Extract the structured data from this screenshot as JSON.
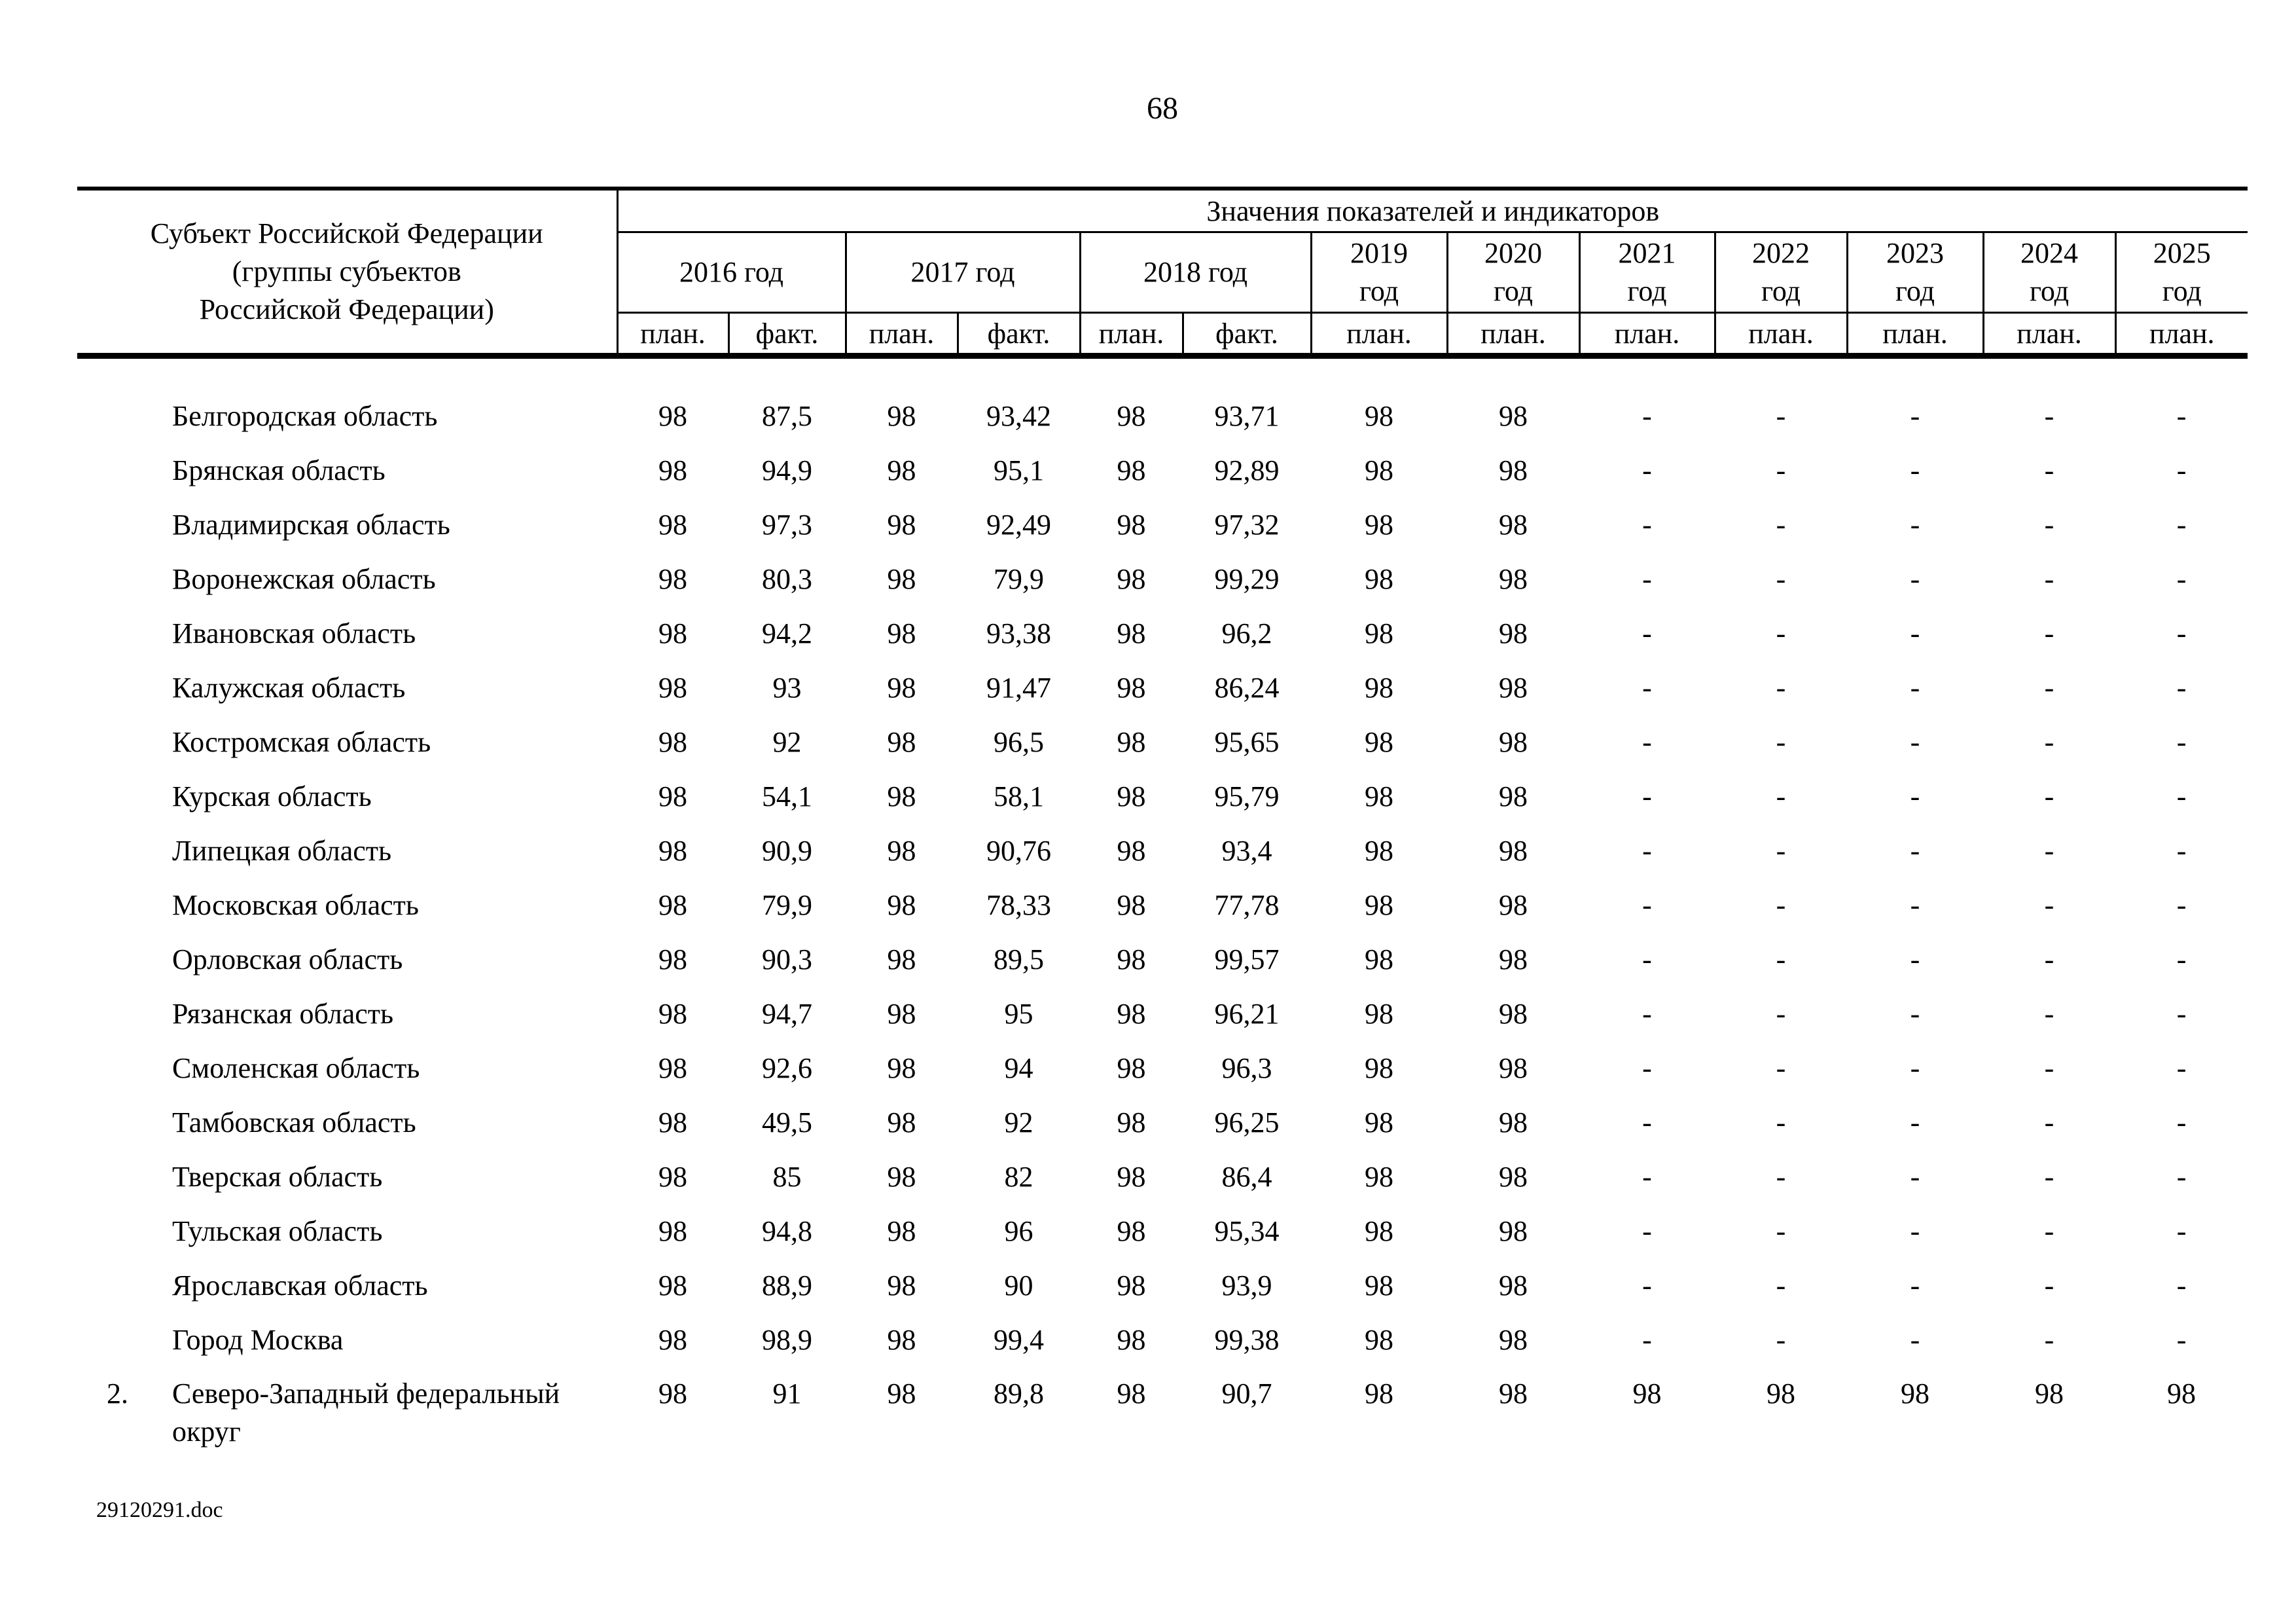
{
  "page": {
    "number": "68",
    "footer_filename": "29120291.doc"
  },
  "table": {
    "subject_header": "Субъект Российской Федерации\n(группы субъектов\nРоссийской Федерации)",
    "values_header": "Значения показателей и индикаторов",
    "year_groups": [
      {
        "year": "2016",
        "label": "2016 год",
        "cols": [
          "план.",
          "факт."
        ]
      },
      {
        "year": "2017",
        "label": "2017 год",
        "cols": [
          "план.",
          "факт."
        ]
      },
      {
        "year": "2018",
        "label": "2018 год",
        "cols": [
          "план.",
          "факт."
        ]
      },
      {
        "year": "2019",
        "label": "2019\nгод",
        "cols": [
          "план."
        ]
      },
      {
        "year": "2020",
        "label": "2020\nгод",
        "cols": [
          "план."
        ]
      },
      {
        "year": "2021",
        "label": "2021\nгод",
        "cols": [
          "план."
        ]
      },
      {
        "year": "2022",
        "label": "2022\nгод",
        "cols": [
          "план."
        ]
      },
      {
        "year": "2023",
        "label": "2023\nгод",
        "cols": [
          "план."
        ]
      },
      {
        "year": "2024",
        "label": "2024\nгод",
        "cols": [
          "план."
        ]
      },
      {
        "year": "2025",
        "label": "2025\nгод",
        "cols": [
          "план."
        ]
      }
    ],
    "rows": [
      {
        "num": "",
        "name": "Белгородская область",
        "values": [
          "98",
          "87,5",
          "98",
          "93,42",
          "98",
          "93,71",
          "98",
          "98",
          "-",
          "-",
          "-",
          "-",
          "-"
        ]
      },
      {
        "num": "",
        "name": "Брянская область",
        "values": [
          "98",
          "94,9",
          "98",
          "95,1",
          "98",
          "92,89",
          "98",
          "98",
          "-",
          "-",
          "-",
          "-",
          "-"
        ]
      },
      {
        "num": "",
        "name": "Владимирская область",
        "values": [
          "98",
          "97,3",
          "98",
          "92,49",
          "98",
          "97,32",
          "98",
          "98",
          "-",
          "-",
          "-",
          "-",
          "-"
        ]
      },
      {
        "num": "",
        "name": "Воронежская область",
        "values": [
          "98",
          "80,3",
          "98",
          "79,9",
          "98",
          "99,29",
          "98",
          "98",
          "-",
          "-",
          "-",
          "-",
          "-"
        ]
      },
      {
        "num": "",
        "name": "Ивановская область",
        "values": [
          "98",
          "94,2",
          "98",
          "93,38",
          "98",
          "96,2",
          "98",
          "98",
          "-",
          "-",
          "-",
          "-",
          "-"
        ]
      },
      {
        "num": "",
        "name": "Калужская область",
        "values": [
          "98",
          "93",
          "98",
          "91,47",
          "98",
          "86,24",
          "98",
          "98",
          "-",
          "-",
          "-",
          "-",
          "-"
        ]
      },
      {
        "num": "",
        "name": "Костромская область",
        "values": [
          "98",
          "92",
          "98",
          "96,5",
          "98",
          "95,65",
          "98",
          "98",
          "-",
          "-",
          "-",
          "-",
          "-"
        ]
      },
      {
        "num": "",
        "name": "Курская область",
        "values": [
          "98",
          "54,1",
          "98",
          "58,1",
          "98",
          "95,79",
          "98",
          "98",
          "-",
          "-",
          "-",
          "-",
          "-"
        ]
      },
      {
        "num": "",
        "name": "Липецкая область",
        "values": [
          "98",
          "90,9",
          "98",
          "90,76",
          "98",
          "93,4",
          "98",
          "98",
          "-",
          "-",
          "-",
          "-",
          "-"
        ]
      },
      {
        "num": "",
        "name": "Московская область",
        "values": [
          "98",
          "79,9",
          "98",
          "78,33",
          "98",
          "77,78",
          "98",
          "98",
          "-",
          "-",
          "-",
          "-",
          "-"
        ]
      },
      {
        "num": "",
        "name": "Орловская область",
        "values": [
          "98",
          "90,3",
          "98",
          "89,5",
          "98",
          "99,57",
          "98",
          "98",
          "-",
          "-",
          "-",
          "-",
          "-"
        ]
      },
      {
        "num": "",
        "name": "Рязанская область",
        "values": [
          "98",
          "94,7",
          "98",
          "95",
          "98",
          "96,21",
          "98",
          "98",
          "-",
          "-",
          "-",
          "-",
          "-"
        ]
      },
      {
        "num": "",
        "name": "Смоленская область",
        "values": [
          "98",
          "92,6",
          "98",
          "94",
          "98",
          "96,3",
          "98",
          "98",
          "-",
          "-",
          "-",
          "-",
          "-"
        ]
      },
      {
        "num": "",
        "name": "Тамбовская область",
        "values": [
          "98",
          "49,5",
          "98",
          "92",
          "98",
          "96,25",
          "98",
          "98",
          "-",
          "-",
          "-",
          "-",
          "-"
        ]
      },
      {
        "num": "",
        "name": "Тверская область",
        "values": [
          "98",
          "85",
          "98",
          "82",
          "98",
          "86,4",
          "98",
          "98",
          "-",
          "-",
          "-",
          "-",
          "-"
        ]
      },
      {
        "num": "",
        "name": "Тульская область",
        "values": [
          "98",
          "94,8",
          "98",
          "96",
          "98",
          "95,34",
          "98",
          "98",
          "-",
          "-",
          "-",
          "-",
          "-"
        ]
      },
      {
        "num": "",
        "name": "Ярославская область",
        "values": [
          "98",
          "88,9",
          "98",
          "90",
          "98",
          "93,9",
          "98",
          "98",
          "-",
          "-",
          "-",
          "-",
          "-"
        ]
      },
      {
        "num": "",
        "name": "Город Москва",
        "values": [
          "98",
          "98,9",
          "98",
          "99,4",
          "98",
          "99,38",
          "98",
          "98",
          "-",
          "-",
          "-",
          "-",
          "-"
        ]
      },
      {
        "num": "2.",
        "name": "Северо-Западный федеральный округ",
        "wrap": true,
        "values": [
          "98",
          "91",
          "98",
          "89,8",
          "98",
          "90,7",
          "98",
          "98",
          "98",
          "98",
          "98",
          "98",
          "98"
        ]
      }
    ]
  }
}
